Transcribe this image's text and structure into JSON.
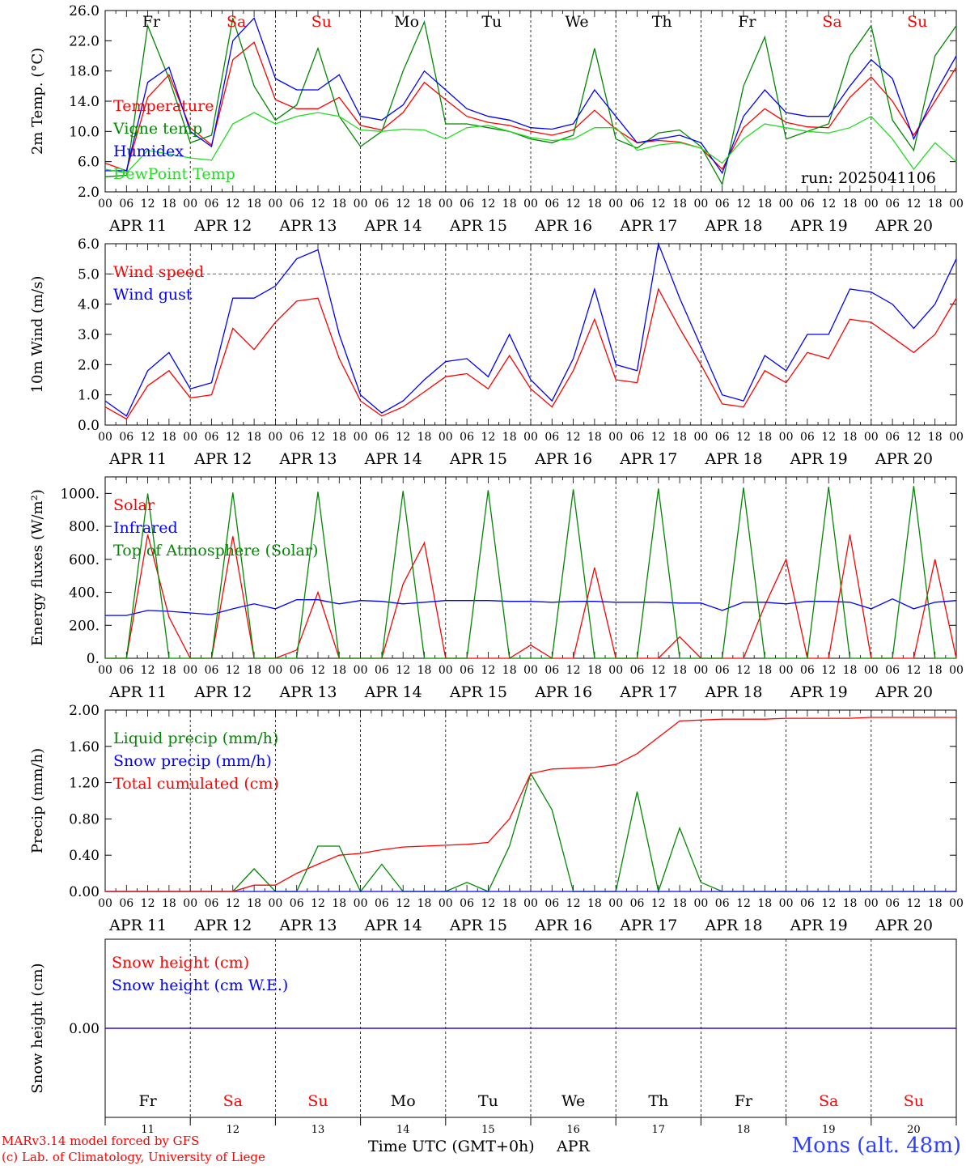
{
  "run_label": "run: 2025041106",
  "credits": [
    "MARv3.14 model forced by GFS",
    "(c) Lab. of Climatology, University of Liege"
  ],
  "xaxis_title": "Time UTC (GMT+0h)",
  "month_label": "APR",
  "station": "Mons (alt. 48m)",
  "days": [
    "Fr",
    "Sa",
    "Su",
    "Mo",
    "Tu",
    "We",
    "Th",
    "Fr",
    "Sa",
    "Su"
  ],
  "weekend_days": [
    1,
    2,
    8,
    9
  ],
  "date_labels": [
    "APR 11",
    "APR 12",
    "APR 13",
    "APR 14",
    "APR 15",
    "APR 16",
    "APR 17",
    "APR 18",
    "APR 19",
    "APR 20"
  ],
  "day_numbers": [
    "11",
    "12",
    "13",
    "14",
    "15",
    "16",
    "17",
    "18",
    "19",
    "20"
  ],
  "hour_labels": [
    "00",
    "06",
    "12",
    "18"
  ],
  "colors": {
    "red": "#ff0000",
    "green": "#008800",
    "blue": "#0000ff",
    "lime": "#22dd22"
  },
  "chart_data": [
    {
      "type": "line",
      "ylabel": "2m Temp. (°C)",
      "ylim": [
        2.0,
        26.0
      ],
      "yticks": [
        "2.0",
        "6.0",
        "10.0",
        "14.0",
        "18.0",
        "22.0",
        "26.0"
      ],
      "x_hours": [
        0,
        6,
        12,
        18,
        24,
        30,
        36,
        42,
        48,
        54,
        60,
        66,
        72,
        78,
        84,
        90,
        96,
        102,
        108,
        114,
        120,
        126,
        132,
        138,
        144,
        150,
        156,
        162,
        168,
        174,
        180,
        186,
        192,
        198,
        204,
        210,
        216,
        222,
        228,
        234,
        240
      ],
      "series": [
        {
          "name": "Temperature",
          "color": "red",
          "values": [
            5.8,
            4.8,
            14.5,
            17.5,
            10.5,
            8.2,
            19.5,
            21.8,
            14.2,
            13.0,
            13.0,
            14.5,
            10.8,
            10.2,
            12.5,
            16.5,
            14.2,
            12.0,
            11.2,
            10.8,
            10.0,
            9.5,
            10.2,
            12.8,
            10.3,
            8.5,
            8.8,
            8.6,
            7.8,
            5.0,
            10.5,
            13.0,
            11.2,
            10.6,
            10.5,
            14.5,
            17.2,
            14.0,
            9.5,
            14.0,
            18.5
          ]
        },
        {
          "name": "Vigne temp",
          "color": "green",
          "values": [
            4.0,
            4.2,
            24.0,
            17.0,
            8.5,
            9.5,
            25.0,
            16.0,
            11.5,
            13.5,
            21.0,
            12.0,
            8.0,
            10.0,
            18.0,
            24.5,
            11.0,
            11.0,
            10.5,
            10.0,
            9.0,
            8.5,
            9.5,
            21.0,
            9.0,
            7.8,
            9.8,
            10.2,
            8.0,
            3.0,
            16.0,
            22.5,
            9.0,
            10.0,
            11.0,
            20.0,
            24.0,
            11.5,
            7.5,
            20.0,
            24.0
          ]
        },
        {
          "name": "Humidex",
          "color": "blue",
          "values": [
            4.8,
            4.8,
            16.5,
            18.5,
            10.0,
            8.0,
            22.0,
            25.0,
            17.0,
            15.5,
            15.5,
            17.5,
            12.0,
            11.5,
            13.5,
            18.0,
            15.5,
            13.0,
            12.0,
            11.5,
            10.5,
            10.3,
            11.0,
            15.5,
            12.0,
            8.5,
            9.0,
            9.5,
            8.5,
            4.5,
            12.0,
            15.5,
            12.5,
            12.0,
            12.0,
            16.0,
            19.5,
            17.0,
            9.0,
            15.0,
            20.0
          ]
        },
        {
          "name": "DewPoint Temp",
          "color": "lime",
          "values": [
            5.0,
            4.5,
            7.5,
            7.0,
            6.5,
            6.2,
            11.0,
            12.5,
            11.0,
            12.0,
            12.5,
            12.0,
            10.2,
            10.0,
            10.3,
            10.2,
            9.0,
            10.5,
            10.8,
            10.0,
            9.2,
            8.8,
            9.0,
            10.5,
            10.5,
            7.5,
            8.2,
            8.5,
            7.8,
            5.8,
            9.0,
            11.0,
            10.5,
            10.0,
            9.8,
            10.5,
            12.0,
            9.0,
            5.0,
            8.5,
            6.0
          ]
        }
      ]
    },
    {
      "type": "line",
      "ylabel": "10m Wind (m/s)",
      "ylim": [
        0.0,
        6.0
      ],
      "yticks": [
        "0.0",
        "1.0",
        "2.0",
        "3.0",
        "4.0",
        "5.0",
        "6.0"
      ],
      "x_hours": [
        0,
        6,
        12,
        18,
        24,
        30,
        36,
        42,
        48,
        54,
        60,
        66,
        72,
        78,
        84,
        90,
        96,
        102,
        108,
        114,
        120,
        126,
        132,
        138,
        144,
        150,
        156,
        162,
        168,
        174,
        180,
        186,
        192,
        198,
        204,
        210,
        216,
        222,
        228,
        234,
        240
      ],
      "series": [
        {
          "name": "Wind speed",
          "color": "red",
          "values": [
            0.6,
            0.2,
            1.3,
            1.8,
            0.9,
            1.0,
            3.2,
            2.5,
            3.4,
            4.1,
            4.2,
            2.2,
            0.8,
            0.3,
            0.6,
            1.1,
            1.6,
            1.7,
            1.2,
            2.3,
            1.2,
            0.6,
            1.8,
            3.5,
            1.5,
            1.4,
            4.5,
            3.2,
            2.0,
            0.7,
            0.6,
            1.8,
            1.4,
            2.4,
            2.2,
            3.5,
            3.4,
            2.9,
            2.4,
            3.0,
            4.2
          ]
        },
        {
          "name": "Wind gust",
          "color": "blue",
          "values": [
            0.8,
            0.3,
            1.8,
            2.4,
            1.2,
            1.4,
            4.2,
            4.2,
            4.6,
            5.5,
            5.8,
            3.0,
            1.0,
            0.4,
            0.8,
            1.5,
            2.1,
            2.2,
            1.6,
            3.0,
            1.5,
            0.8,
            2.2,
            4.5,
            2.0,
            1.8,
            6.0,
            4.2,
            2.6,
            1.0,
            0.8,
            2.3,
            1.8,
            3.0,
            3.0,
            4.5,
            4.4,
            4.0,
            3.2,
            4.0,
            5.5
          ]
        }
      ]
    },
    {
      "type": "line",
      "ylabel": "Energy fluxes (W/m²)",
      "ylim": [
        0,
        1100
      ],
      "yticks": [
        "0.",
        "200.",
        "400.",
        "600.",
        "800.",
        "1000."
      ],
      "x_hours": [
        0,
        6,
        12,
        18,
        24,
        30,
        36,
        42,
        48,
        54,
        60,
        66,
        72,
        78,
        84,
        90,
        96,
        102,
        108,
        114,
        120,
        126,
        132,
        138,
        144,
        150,
        156,
        162,
        168,
        174,
        180,
        186,
        192,
        198,
        204,
        210,
        216,
        222,
        228,
        234,
        240
      ],
      "series": [
        {
          "name": "Solar",
          "color": "red",
          "values": [
            0,
            0,
            750,
            250,
            0,
            0,
            740,
            0,
            0,
            50,
            400,
            0,
            0,
            0,
            450,
            700,
            0,
            0,
            0,
            0,
            80,
            0,
            0,
            550,
            0,
            0,
            0,
            130,
            0,
            0,
            0,
            320,
            600,
            0,
            0,
            750,
            0,
            0,
            0,
            600,
            0
          ]
        },
        {
          "name": "Infrared",
          "color": "blue",
          "values": [
            260,
            260,
            290,
            285,
            275,
            265,
            300,
            330,
            300,
            355,
            355,
            330,
            350,
            345,
            330,
            340,
            350,
            350,
            350,
            345,
            345,
            340,
            345,
            345,
            340,
            340,
            340,
            335,
            335,
            290,
            340,
            340,
            330,
            345,
            345,
            340,
            300,
            360,
            300,
            340,
            350
          ]
        },
        {
          "name": "Top of Atmosphere (Solar)",
          "color": "green",
          "values": [
            0,
            0,
            1000,
            0,
            0,
            0,
            1005,
            0,
            0,
            0,
            1010,
            0,
            0,
            0,
            1015,
            0,
            0,
            0,
            1020,
            0,
            0,
            0,
            1025,
            0,
            0,
            0,
            1030,
            0,
            0,
            0,
            1035,
            0,
            0,
            0,
            1040,
            0,
            0,
            0,
            1045,
            0,
            0
          ]
        }
      ]
    },
    {
      "type": "line",
      "ylabel": "Precip (mm/h)",
      "ylim": [
        0.0,
        2.0
      ],
      "yticks": [
        "0.00",
        "0.40",
        "0.80",
        "1.20",
        "1.60",
        "2.00"
      ],
      "x_hours": [
        0,
        6,
        12,
        18,
        24,
        30,
        36,
        42,
        48,
        54,
        60,
        66,
        72,
        78,
        84,
        90,
        96,
        102,
        108,
        114,
        120,
        126,
        132,
        138,
        144,
        150,
        156,
        162,
        168,
        174,
        180,
        186,
        192,
        198,
        204,
        210,
        216,
        222,
        228,
        234,
        240
      ],
      "series": [
        {
          "name": "Liquid precip (mm/h)",
          "color": "green",
          "values": [
            0,
            0,
            0,
            0,
            0,
            0,
            0,
            0.25,
            0,
            0,
            0.5,
            0.5,
            0,
            0.3,
            0,
            0,
            0,
            0.1,
            0,
            0.5,
            1.3,
            0.9,
            0,
            0,
            0,
            1.1,
            0,
            0.7,
            0.1,
            0,
            0,
            0,
            0,
            0,
            0,
            0,
            0,
            0,
            0,
            0,
            0
          ]
        },
        {
          "name": "Snow precip (mm/h)",
          "color": "blue",
          "values": [
            0,
            0,
            0,
            0,
            0,
            0,
            0,
            0,
            0,
            0,
            0,
            0,
            0,
            0,
            0,
            0,
            0,
            0,
            0,
            0,
            0,
            0,
            0,
            0,
            0,
            0,
            0,
            0,
            0,
            0,
            0,
            0,
            0,
            0,
            0,
            0,
            0,
            0,
            0,
            0,
            0
          ]
        },
        {
          "name": "Total cumulated (cm)",
          "color": "red",
          "values": [
            0,
            0,
            0,
            0,
            0,
            0,
            0,
            0.07,
            0.07,
            0.2,
            0.3,
            0.4,
            0.42,
            0.46,
            0.49,
            0.5,
            0.51,
            0.52,
            0.54,
            0.8,
            1.3,
            1.35,
            1.36,
            1.37,
            1.4,
            1.52,
            1.7,
            1.88,
            1.89,
            1.9,
            1.9,
            1.9,
            1.91,
            1.91,
            1.91,
            1.91,
            1.92,
            1.92,
            1.92,
            1.92,
            1.92
          ]
        }
      ]
    },
    {
      "type": "line",
      "ylabel": "Snow height (cm)",
      "yticks": [
        "0.00"
      ],
      "x_hours": [
        0,
        240
      ],
      "series": [
        {
          "name": "Snow height (cm)",
          "color": "red",
          "values": [
            0,
            0
          ]
        },
        {
          "name": "Snow height (cm W.E.)",
          "color": "blue",
          "values": [
            0,
            0
          ]
        }
      ]
    }
  ]
}
